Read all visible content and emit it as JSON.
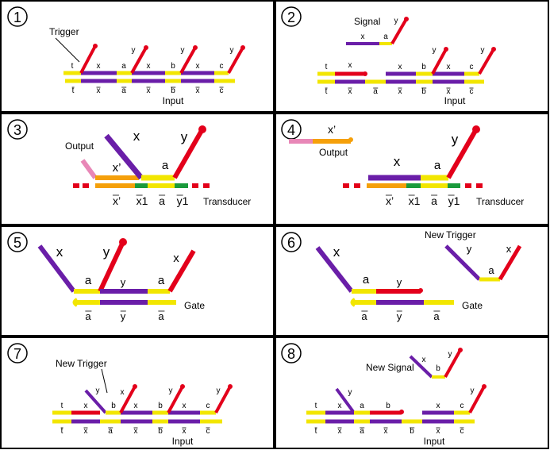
{
  "colors": {
    "yellow": "#f2e600",
    "purple": "#6a1ea8",
    "red": "#e3001b",
    "orange": "#f5a00a",
    "green": "#1a9a3c",
    "pink": "#e887b7",
    "border": "#000000"
  },
  "panels": [
    {
      "number": "1",
      "labels": {
        "trigger": "Trigger",
        "input": "Input"
      },
      "top_domains": [
        "t",
        "x",
        "a",
        "x",
        "b",
        "x",
        "c"
      ],
      "bottom_domains": [
        "t",
        "x",
        "a",
        "x",
        "b",
        "x",
        "c"
      ],
      "hairpin_labels": [
        "y",
        "y",
        "y",
        "y"
      ]
    },
    {
      "number": "2",
      "labels": {
        "signal": "Signal",
        "input": "Input"
      },
      "signal_domains": [
        "x",
        "a",
        "y"
      ],
      "top_domains": [
        "t",
        "x",
        "x",
        "b",
        "x",
        "c"
      ],
      "bottom_domains": [
        "t",
        "x",
        "a",
        "x",
        "b",
        "x",
        "c"
      ],
      "hairpin_labels": [
        "y",
        "y",
        "y"
      ]
    },
    {
      "number": "3",
      "labels": {
        "output": "Output",
        "transducer": "Transducer"
      },
      "top_domains": [
        "x",
        "x’",
        "a",
        "y"
      ],
      "bottom_domains": [
        "x’",
        "x1",
        "a",
        "y1"
      ]
    },
    {
      "number": "4",
      "labels": {
        "output": "Output",
        "transducer": "Transducer"
      },
      "top_domains": [
        "x’",
        "x",
        "a",
        "y"
      ],
      "bottom_domains": [
        "x’",
        "x1",
        "a",
        "y1"
      ]
    },
    {
      "number": "5",
      "labels": {
        "gate": "Gate"
      },
      "top_domains": [
        "x",
        "y",
        "a",
        "y",
        "a",
        "x"
      ],
      "bottom_domains": [
        "a",
        "y",
        "a"
      ]
    },
    {
      "number": "6",
      "labels": {
        "gate": "Gate",
        "new_trigger": "New Trigger"
      },
      "top_domains": [
        "x",
        "a",
        "y",
        "y",
        "x",
        "a"
      ],
      "bottom_domains": [
        "a",
        "y",
        "a"
      ]
    },
    {
      "number": "7",
      "labels": {
        "new_trigger": "New Trigger",
        "input": "Input"
      },
      "top_domains": [
        "t",
        "x",
        "y",
        "b",
        "x",
        "b",
        "x",
        "c"
      ],
      "hairpin_labels": [
        "x",
        "y",
        "y"
      ],
      "bottom_domains": [
        "t",
        "x",
        "a",
        "x",
        "b",
        "x",
        "c"
      ]
    },
    {
      "number": "8",
      "labels": {
        "new_signal": "New Signal",
        "input": "Input"
      },
      "signal_domains": [
        "x",
        "b",
        "y"
      ],
      "top_domains": [
        "t",
        "x",
        "y",
        "a",
        "b",
        "x",
        "c"
      ],
      "hairpin_labels": [
        "y"
      ],
      "bottom_domains": [
        "t",
        "x",
        "a",
        "x",
        "b",
        "x",
        "c"
      ]
    }
  ]
}
